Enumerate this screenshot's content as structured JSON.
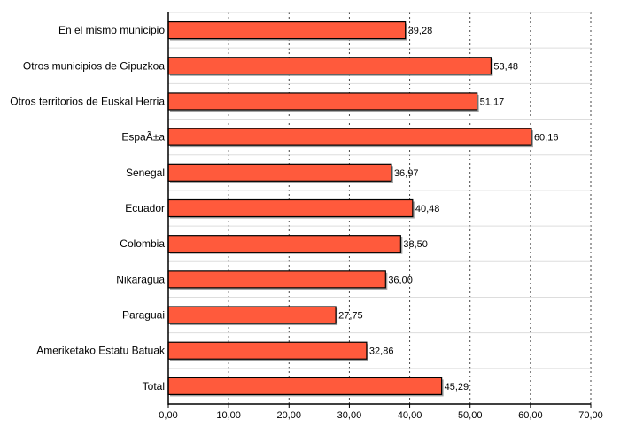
{
  "chart_data": {
    "type": "bar",
    "orientation": "horizontal",
    "categories": [
      "En el mismo municipio",
      "Otros municipios de Gipuzkoa",
      "Otros territorios de Euskal Herria",
      "EspaÃ±a",
      "Senegal",
      "Ecuador",
      "Colombia",
      "Nikaragua",
      "Paraguai",
      "Ameriketako Estatu Batuak",
      "Total"
    ],
    "values": [
      39.28,
      53.48,
      51.17,
      60.16,
      36.97,
      40.48,
      38.5,
      36.0,
      27.75,
      32.86,
      45.29
    ],
    "value_labels": [
      "39,28",
      "53,48",
      "51,17",
      "60,16",
      "36,97",
      "40,48",
      "38,50",
      "36,00",
      "27,75",
      "32,86",
      "45,29"
    ],
    "xlim": [
      0,
      70
    ],
    "x_ticks": [
      0,
      10,
      20,
      30,
      40,
      50,
      60,
      70
    ],
    "x_tick_labels": [
      "0,00",
      "10,00",
      "20,00",
      "30,00",
      "40,00",
      "50,00",
      "60,00",
      "70,00"
    ],
    "title": "",
    "xlabel": "",
    "ylabel": "",
    "grid": true,
    "colors": {
      "bar": "#ff5a3c",
      "bar_border": "#000000",
      "shadow": "#a0a0a0"
    }
  }
}
